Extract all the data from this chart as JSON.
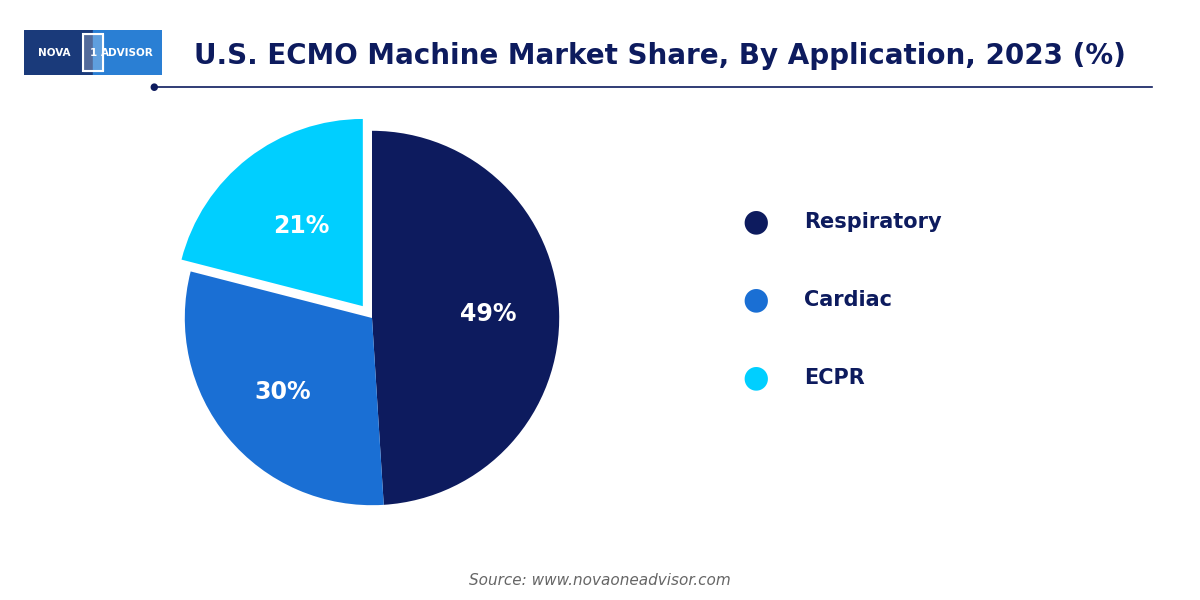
{
  "title": "U.S. ECMO Machine Market Share, By Application, 2023 (%)",
  "labels": [
    "Respiratory",
    "Cardiac",
    "ECPR"
  ],
  "values": [
    49,
    30,
    21
  ],
  "colors": [
    "#0d1b5e",
    "#1a6fd4",
    "#00cfff"
  ],
  "explode": [
    0,
    0,
    0.08
  ],
  "pct_labels": [
    "49%",
    "30%",
    "21%"
  ],
  "legend_labels": [
    "Respiratory",
    "Cardiac",
    "ECPR"
  ],
  "source_text": "Source: www.novaoneadvisor.com",
  "title_color": "#0d1b5e",
  "text_color": "#ffffff",
  "background_color": "#ffffff",
  "title_fontsize": 20,
  "legend_fontsize": 15,
  "pct_fontsize": 17,
  "source_fontsize": 11,
  "logo_dark": "#1a3a7a",
  "logo_light": "#2a7fd4"
}
